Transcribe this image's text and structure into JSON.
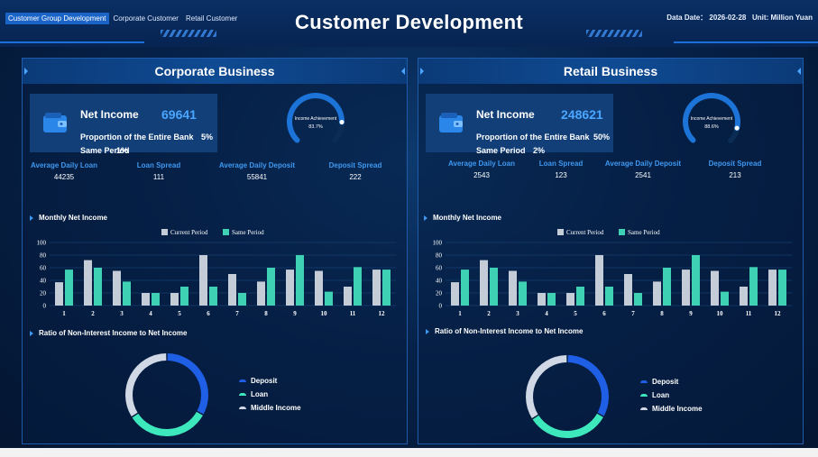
{
  "header": {
    "nav_tabs": [
      {
        "label": "Customer Group Development",
        "active": true
      },
      {
        "label": "Corporate Customer",
        "active": false
      },
      {
        "label": "Retail Customer",
        "active": false
      }
    ],
    "title": "Customer Development",
    "date_label": "Data Date：",
    "date_value": "2026-02-28",
    "unit_label": "Unit:",
    "unit_value": "Million Yuan"
  },
  "colors": {
    "current_period": "#c4ccd8",
    "same_period": "#3ed1b4",
    "deposit": "#1f5fe6",
    "loan": "#3ee8bd",
    "middle_income": "#d0d8e6",
    "accent_blue": "#4aa6ff"
  },
  "panels": [
    {
      "title": "Corporate Business",
      "net_income_label": "Net Income",
      "net_income_value": "69641",
      "proportion_label": "Proportion of the Entire Bank",
      "proportion_value": "5%",
      "same_period_label": "Same Period",
      "same_period_value": "1%",
      "gauge_label": "Income Achievement",
      "gauge_value": "83.7%",
      "gauge_fraction": 0.837,
      "metrics": [
        {
          "label": "Average Daily Loan",
          "value": "44235"
        },
        {
          "label": "Loan Spread",
          "value": "111"
        },
        {
          "label": "Average Daily Deposit",
          "value": "55841"
        },
        {
          "label": "Deposit Spread",
          "value": "222"
        }
      ],
      "monthly_title": "Monthly Net Income",
      "ratio_title": "Ratio of Non-Interest Income to Net Income",
      "legend": [
        {
          "label": "Deposit",
          "color_key": "deposit"
        },
        {
          "label": "Loan",
          "color_key": "loan"
        },
        {
          "label": "Middle Income",
          "color_key": "middle_income"
        }
      ]
    },
    {
      "title": "Retail Business",
      "net_income_label": "Net Income",
      "net_income_value": "248621",
      "proportion_label": "Proportion of the Entire Bank",
      "proportion_value": "50%",
      "same_period_label": "Same Period",
      "same_period_value": "2%",
      "gauge_label": "Income Achievement",
      "gauge_value": "88.6%",
      "gauge_fraction": 0.886,
      "metrics": [
        {
          "label": "Average Daily Loan",
          "value": "2543"
        },
        {
          "label": "Loan Spread",
          "value": "123"
        },
        {
          "label": "Average Daily Deposit",
          "value": "2541"
        },
        {
          "label": "Deposit Spread",
          "value": "213"
        }
      ],
      "monthly_title": "Monthly Net Income",
      "ratio_title": "Ratio of Non-Interest Income to Net Income",
      "legend": [
        {
          "label": "Deposit",
          "color_key": "deposit"
        },
        {
          "label": "Loan",
          "color_key": "loan"
        },
        {
          "label": "Middle Income",
          "color_key": "middle_income"
        }
      ]
    }
  ],
  "chart_data": [
    {
      "type": "bar",
      "categories": [
        "1",
        "2",
        "3",
        "4",
        "5",
        "6",
        "7",
        "8",
        "9",
        "10",
        "11",
        "12"
      ],
      "series": [
        {
          "name": "Current Period",
          "values": [
            37,
            72,
            55,
            20,
            20,
            80,
            50,
            38,
            57,
            55,
            30,
            57
          ]
        },
        {
          "name": "Same Period",
          "values": [
            57,
            60,
            38,
            20,
            30,
            30,
            20,
            60,
            80,
            22,
            61,
            57
          ]
        }
      ],
      "yticks": [
        0,
        20,
        40,
        60,
        80,
        100
      ],
      "ylim": [
        0,
        100
      ],
      "legend_position": "top-center"
    },
    {
      "type": "bar",
      "categories": [
        "1",
        "2",
        "3",
        "4",
        "5",
        "6",
        "7",
        "8",
        "9",
        "10",
        "11",
        "12"
      ],
      "series": [
        {
          "name": "Current Period",
          "values": [
            37,
            72,
            55,
            20,
            20,
            80,
            50,
            38,
            57,
            55,
            30,
            57
          ]
        },
        {
          "name": "Same Period",
          "values": [
            57,
            60,
            38,
            20,
            30,
            30,
            20,
            60,
            80,
            22,
            61,
            57
          ]
        }
      ],
      "yticks": [
        0,
        20,
        40,
        60,
        80,
        100
      ],
      "ylim": [
        0,
        100
      ],
      "legend_position": "top-center"
    },
    {
      "type": "pie",
      "categories": [
        "Deposit",
        "Loan",
        "Middle Income"
      ],
      "values": [
        33,
        33,
        34
      ]
    },
    {
      "type": "pie",
      "categories": [
        "Deposit",
        "Loan",
        "Middle Income"
      ],
      "values": [
        33,
        33,
        34
      ]
    }
  ]
}
